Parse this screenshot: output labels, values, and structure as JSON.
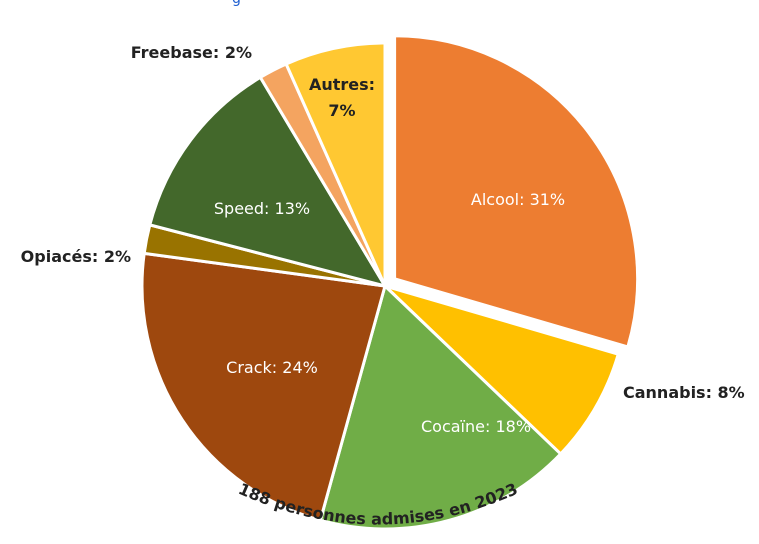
{
  "header": {
    "fragment": "g"
  },
  "chart_data": {
    "type": "pie",
    "title": "",
    "caption": "188 personnes admises en 2023",
    "start_angle_deg": 0,
    "direction": "clockwise",
    "slices": [
      {
        "name": "Alcool",
        "value": 31,
        "label": "Alcool: 31%",
        "color": "#ED7D31",
        "label_color": "#ffffff",
        "label_inside": true,
        "exploded": true
      },
      {
        "name": "Cannabis",
        "value": 8,
        "label": "Cannabis: 8%",
        "color": "#FFC000",
        "label_color": "#222222",
        "label_inside": false
      },
      {
        "name": "Cocaïne",
        "value": 18,
        "label": "Cocaïne: 18%",
        "color": "#70AD47",
        "label_color": "#ffffff",
        "label_inside": true
      },
      {
        "name": "Crack",
        "value": 24,
        "label": "Crack: 24%",
        "color": "#9E480E",
        "label_color": "#ffffff",
        "label_inside": true
      },
      {
        "name": "Opiacés",
        "value": 2,
        "label": "Opiacés: 2%",
        "color": "#997300",
        "label_color": "#222222",
        "label_inside": false
      },
      {
        "name": "Speed",
        "value": 13,
        "label": "Speed: 13%",
        "color": "#43682B",
        "label_color": "#ffffff",
        "label_inside": true
      },
      {
        "name": "Freebase",
        "value": 2,
        "label": "Freebase: 2%",
        "color": "#F4A460",
        "label_color": "#222222",
        "label_inside": false
      },
      {
        "name": "Autres",
        "value": 7,
        "label": "Autres:\n7%",
        "color": "#FFC832",
        "label_color": "#222222",
        "label_inside": true
      }
    ]
  }
}
